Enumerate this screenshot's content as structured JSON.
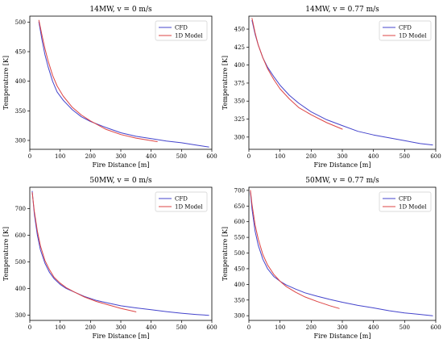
{
  "chart_data": [
    {
      "type": "line",
      "title": "14MW, v = 0 m/s",
      "xlabel": "Fire Distance [m]",
      "ylabel": "Temperature [K]",
      "xlim": [
        0,
        600
      ],
      "ylim": [
        285,
        510
      ],
      "xticks": [
        "0",
        "100",
        "200",
        "300",
        "400",
        "500",
        "600"
      ],
      "yticks": [
        "300",
        "350",
        "400",
        "450",
        "500"
      ],
      "legend_position": "top-right",
      "series": [
        {
          "name": "CFD",
          "color": "#4444cc",
          "x": [
            30,
            40,
            50,
            60,
            75,
            90,
            110,
            140,
            170,
            200,
            250,
            300,
            350,
            400,
            450,
            500,
            550,
            590
          ],
          "y": [
            500,
            470,
            445,
            425,
            400,
            382,
            368,
            352,
            340,
            332,
            322,
            313,
            307,
            303,
            299,
            296,
            292,
            289
          ]
        },
        {
          "name": "1D Model",
          "color": "#dd4444",
          "x": [
            30,
            40,
            50,
            60,
            75,
            90,
            110,
            140,
            170,
            200,
            250,
            300,
            350,
            420
          ],
          "y": [
            503,
            478,
            455,
            435,
            410,
            392,
            375,
            356,
            343,
            333,
            319,
            310,
            304,
            298
          ]
        }
      ]
    },
    {
      "type": "line",
      "title": "14MW, v = 0.77 m/s",
      "xlabel": "Fire Distance [m]",
      "ylabel": "Temperature [K]",
      "xlim": [
        0,
        600
      ],
      "ylim": [
        283,
        468
      ],
      "xticks": [
        "0",
        "100",
        "200",
        "300",
        "400",
        "500",
        "600"
      ],
      "yticks": [
        "300",
        "325",
        "350",
        "375",
        "400",
        "425",
        "450"
      ],
      "legend_position": "top-right",
      "series": [
        {
          "name": "CFD",
          "color": "#4444cc",
          "x": [
            10,
            20,
            30,
            45,
            60,
            80,
            100,
            130,
            160,
            200,
            250,
            300,
            350,
            400,
            450,
            500,
            550,
            590
          ],
          "y": [
            462,
            443,
            428,
            410,
            397,
            384,
            372,
            358,
            347,
            335,
            324,
            316,
            308,
            303,
            299,
            295,
            291,
            289
          ]
        },
        {
          "name": "1D Model",
          "color": "#dd4444",
          "x": [
            10,
            20,
            30,
            45,
            60,
            80,
            100,
            130,
            160,
            200,
            250,
            300
          ],
          "y": [
            465,
            445,
            428,
            410,
            395,
            380,
            367,
            353,
            341,
            331,
            320,
            311
          ]
        }
      ]
    },
    {
      "type": "line",
      "title": "50MW, v = 0 m/s",
      "xlabel": "Fire Distance [m]",
      "ylabel": "Temperature [K]",
      "xlim": [
        0,
        600
      ],
      "ylim": [
        280,
        780
      ],
      "xticks": [
        "0",
        "100",
        "200",
        "300",
        "400",
        "500",
        "600"
      ],
      "yticks": [
        "300",
        "400",
        "500",
        "600",
        "700"
      ],
      "legend_position": "top-right",
      "series": [
        {
          "name": "CFD",
          "color": "#4444cc",
          "x": [
            8,
            15,
            25,
            35,
            50,
            65,
            80,
            100,
            120,
            150,
            180,
            220,
            260,
            300,
            350,
            400,
            450,
            500,
            550,
            590
          ],
          "y": [
            765,
            680,
            600,
            545,
            495,
            460,
            437,
            415,
            400,
            385,
            370,
            355,
            345,
            335,
            327,
            320,
            313,
            307,
            302,
            299
          ]
        },
        {
          "name": "1D Model",
          "color": "#dd4444",
          "x": [
            8,
            15,
            25,
            35,
            50,
            65,
            80,
            100,
            120,
            150,
            180,
            220,
            260,
            300,
            350
          ],
          "y": [
            760,
            690,
            615,
            560,
            505,
            470,
            442,
            420,
            403,
            385,
            368,
            351,
            338,
            325,
            312
          ]
        }
      ]
    },
    {
      "type": "line",
      "title": "50MW, v = 0.77 m/s",
      "xlabel": "Fire Distance [m]",
      "ylabel": "Temperature [K]",
      "xlim": [
        0,
        600
      ],
      "ylim": [
        285,
        710
      ],
      "xticks": [
        "0",
        "100",
        "200",
        "300",
        "400",
        "500",
        "600"
      ],
      "yticks": [
        "300",
        "350",
        "400",
        "450",
        "500",
        "550",
        "600",
        "650",
        "700"
      ],
      "legend_position": "top-right",
      "series": [
        {
          "name": "CFD",
          "color": "#4444cc",
          "x": [
            5,
            10,
            20,
            30,
            45,
            60,
            80,
            100,
            120,
            150,
            180,
            220,
            260,
            300,
            350,
            400,
            450,
            500,
            550,
            590
          ],
          "y": [
            695,
            640,
            570,
            525,
            480,
            450,
            425,
            410,
            398,
            385,
            373,
            362,
            352,
            343,
            333,
            325,
            316,
            309,
            304,
            300
          ]
        },
        {
          "name": "1D Model",
          "color": "#dd4444",
          "x": [
            5,
            10,
            20,
            30,
            45,
            60,
            80,
            100,
            120,
            150,
            180,
            220,
            260,
            290
          ],
          "y": [
            700,
            655,
            590,
            545,
            495,
            462,
            432,
            410,
            393,
            375,
            360,
            345,
            332,
            323
          ]
        }
      ]
    }
  ]
}
